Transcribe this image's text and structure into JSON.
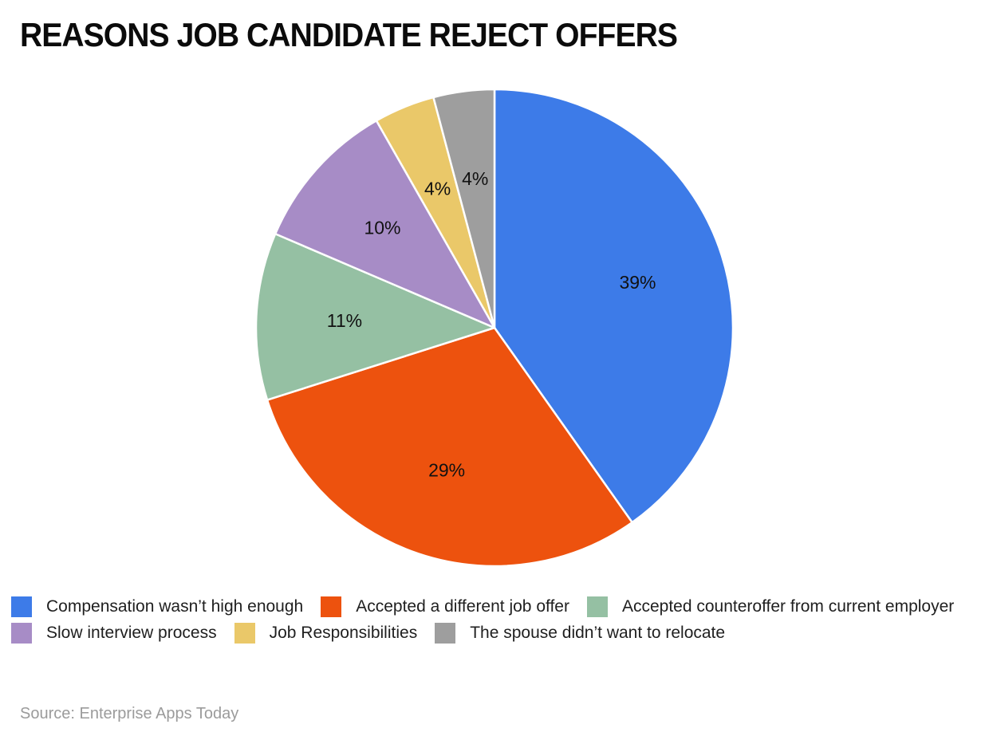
{
  "title": "REASONS JOB CANDIDATE REJECT OFFERS",
  "source": "Source: Enterprise Apps Today",
  "chart_data": {
    "type": "pie",
    "title": "REASONS JOB CANDIDATE REJECT OFFERS",
    "start_angle_deg": 0,
    "direction": "clockwise",
    "value_label_format": "percent",
    "legend_position": "bottom",
    "slices": [
      {
        "label": "Compensation wasn’t high enough",
        "value": 39,
        "color": "#3D7BE8"
      },
      {
        "label": "Accepted a different job offer",
        "value": 29,
        "color": "#ED520E"
      },
      {
        "label": "Accepted counteroffer from current employer",
        "value": 11,
        "color": "#95C0A3"
      },
      {
        "label": "Slow interview process",
        "value": 10,
        "color": "#A78CC6"
      },
      {
        "label": "Job Responsibilities",
        "value": 4,
        "color": "#EAC869"
      },
      {
        "label": "The spouse didn’t want to relocate",
        "value": 4,
        "color": "#9E9E9E"
      }
    ]
  }
}
